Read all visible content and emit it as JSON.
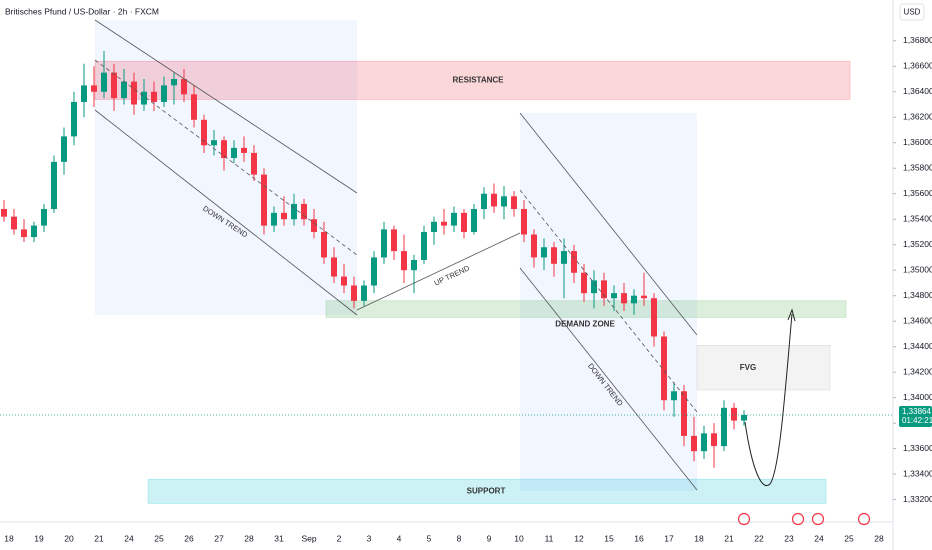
{
  "chart_data": {
    "type": "candlestick",
    "title": "Britisches Pfund / US-Dollar · 2h · FXCM",
    "currency": "USD",
    "up_color": "#089981",
    "down_color": "#f23645",
    "categories": [
      "18",
      "19",
      "20",
      "21",
      "24",
      "25",
      "26",
      "27",
      "28",
      "31",
      "Sep",
      "2",
      "3",
      "4",
      "5",
      "8",
      "9",
      "10",
      "11",
      "12",
      "15",
      "16",
      "17",
      "18",
      "21",
      "22",
      "23",
      "24",
      "25",
      "28"
    ],
    "open": [
      1.3548,
      1.3542,
      1.3532,
      1.3526,
      1.3535,
      1.3548,
      1.3585,
      1.3605,
      1.3632,
      1.3645,
      1.364,
      1.3655,
      1.3635,
      1.3648,
      1.363,
      1.364,
      1.3632,
      1.3645,
      1.365,
      1.3638,
      1.3618,
      1.3598,
      1.3602,
      1.3588,
      1.3596,
      1.3592,
      1.3575,
      1.3535,
      1.3545,
      1.354,
      1.3552,
      1.354,
      1.353,
      1.351,
      1.3495,
      1.3488,
      1.3476,
      1.3488,
      1.351,
      1.3532,
      1.3515,
      1.35,
      1.3508,
      1.353,
      1.3538,
      1.3535,
      1.3545,
      1.353,
      1.3548,
      1.356,
      1.355,
      1.3558,
      1.3548,
      1.3528,
      1.351,
      1.3518,
      1.3505,
      1.3515,
      1.3498,
      1.3482,
      1.3492,
      1.3478,
      1.3482,
      1.3474,
      1.348,
      1.3478,
      1.3448,
      1.3398,
      1.3405,
      1.337,
      1.3358,
      1.3372,
      1.3362,
      1.3392,
      1.3382
    ],
    "high": [
      1.3555,
      1.3548,
      1.354,
      1.3538,
      1.3552,
      1.359,
      1.3612,
      1.364,
      1.3662,
      1.366,
      1.3672,
      1.3662,
      1.3658,
      1.3655,
      1.365,
      1.3648,
      1.3652,
      1.3655,
      1.3658,
      1.3645,
      1.3622,
      1.361,
      1.3605,
      1.3602,
      1.3605,
      1.3598,
      1.358,
      1.355,
      1.3558,
      1.356,
      1.3556,
      1.3548,
      1.3538,
      1.3518,
      1.3505,
      1.3495,
      1.3492,
      1.3515,
      1.3538,
      1.3535,
      1.3528,
      1.3512,
      1.3535,
      1.3542,
      1.3548,
      1.355,
      1.3548,
      1.3552,
      1.3565,
      1.3568,
      1.3566,
      1.3562,
      1.3555,
      1.3532,
      1.3525,
      1.3522,
      1.3525,
      1.352,
      1.3505,
      1.35,
      1.3498,
      1.3488,
      1.349,
      1.3485,
      1.3498,
      1.3482,
      1.3452,
      1.3412,
      1.341,
      1.3385,
      1.3378,
      1.338,
      1.3398,
      1.3396,
      1.339
    ],
    "low": [
      1.3538,
      1.3528,
      1.3522,
      1.3522,
      1.353,
      1.3545,
      1.3575,
      1.3598,
      1.362,
      1.3628,
      1.3635,
      1.3625,
      1.363,
      1.3622,
      1.3625,
      1.3625,
      1.3628,
      1.363,
      1.3632,
      1.3612,
      1.3592,
      1.359,
      1.3578,
      1.3584,
      1.3585,
      1.357,
      1.3528,
      1.353,
      1.3535,
      1.3535,
      1.3535,
      1.3525,
      1.3505,
      1.349,
      1.3482,
      1.347,
      1.3472,
      1.3482,
      1.3505,
      1.3508,
      1.349,
      1.3482,
      1.3505,
      1.352,
      1.3528,
      1.353,
      1.3525,
      1.3528,
      1.354,
      1.3545,
      1.354,
      1.3542,
      1.3522,
      1.3502,
      1.35,
      1.3495,
      1.3478,
      1.349,
      1.3475,
      1.347,
      1.3472,
      1.3468,
      1.3468,
      1.3465,
      1.3472,
      1.344,
      1.339,
      1.3385,
      1.3362,
      1.335,
      1.3352,
      1.3345,
      1.3358,
      1.3375,
      1.3378
    ],
    "close": [
      1.3542,
      1.3532,
      1.3526,
      1.3535,
      1.3548,
      1.3585,
      1.3605,
      1.3632,
      1.3645,
      1.364,
      1.3655,
      1.3635,
      1.3648,
      1.363,
      1.364,
      1.3632,
      1.3645,
      1.365,
      1.3638,
      1.3618,
      1.3598,
      1.3602,
      1.3588,
      1.3596,
      1.3592,
      1.3575,
      1.3535,
      1.3545,
      1.354,
      1.3552,
      1.354,
      1.353,
      1.351,
      1.3495,
      1.3488,
      1.3476,
      1.3488,
      1.351,
      1.3532,
      1.3515,
      1.35,
      1.3508,
      1.353,
      1.3538,
      1.3535,
      1.3545,
      1.353,
      1.3548,
      1.356,
      1.355,
      1.3558,
      1.3548,
      1.3528,
      1.351,
      1.3518,
      1.3505,
      1.3515,
      1.3498,
      1.3482,
      1.3492,
      1.3478,
      1.3482,
      1.3474,
      1.348,
      1.3478,
      1.3448,
      1.3398,
      1.3405,
      1.337,
      1.3358,
      1.3372,
      1.3362,
      1.3392,
      1.3382,
      1.33864
    ],
    "ylim": [
      1.3304,
      1.3712
    ],
    "yticks": [
      {
        "value": 1.368,
        "label": "1,36800"
      },
      {
        "value": 1.366,
        "label": "1,36600"
      },
      {
        "value": 1.364,
        "label": "1,36400"
      },
      {
        "value": 1.362,
        "label": "1,36200"
      },
      {
        "value": 1.36,
        "label": "1,36000"
      },
      {
        "value": 1.358,
        "label": "1,35800"
      },
      {
        "value": 1.356,
        "label": "1,35600"
      },
      {
        "value": 1.354,
        "label": "1,35400"
      },
      {
        "value": 1.352,
        "label": "1,35200"
      },
      {
        "value": 1.35,
        "label": "1,35000"
      },
      {
        "value": 1.348,
        "label": "1,34800"
      },
      {
        "value": 1.346,
        "label": "1,34600"
      },
      {
        "value": 1.344,
        "label": "1,34400"
      },
      {
        "value": 1.342,
        "label": "1,34200"
      },
      {
        "value": 1.34,
        "label": "1,34000"
      },
      {
        "value": 1.338,
        "label": "1,33800"
      },
      {
        "value": 1.336,
        "label": "1,33600"
      },
      {
        "value": 1.334,
        "label": "1,33400"
      },
      {
        "value": 1.332,
        "label": "1,33200"
      }
    ],
    "grid": false,
    "last_price": {
      "value": 1.33864,
      "label": "1,33864"
    },
    "countdown": "01:42:21",
    "zones": [
      {
        "label": "RESISTANCE",
        "top": 1.3664,
        "bottom": 1.3634,
        "color": "#f23645"
      },
      {
        "label": "DEMAND ZONE",
        "top": 1.3476,
        "bottom": 1.3463,
        "color": "#4caf50"
      },
      {
        "label": "FVG",
        "top": 1.3441,
        "bottom": 1.3406,
        "color": "#9e9e9e"
      },
      {
        "label": "SUPPORT",
        "top": 1.3336,
        "bottom": 1.3317,
        "color": "#00bcd4"
      }
    ],
    "trend_labels": [
      "DOWN TREND",
      "UP TREND",
      "DOWN TREND"
    ]
  }
}
